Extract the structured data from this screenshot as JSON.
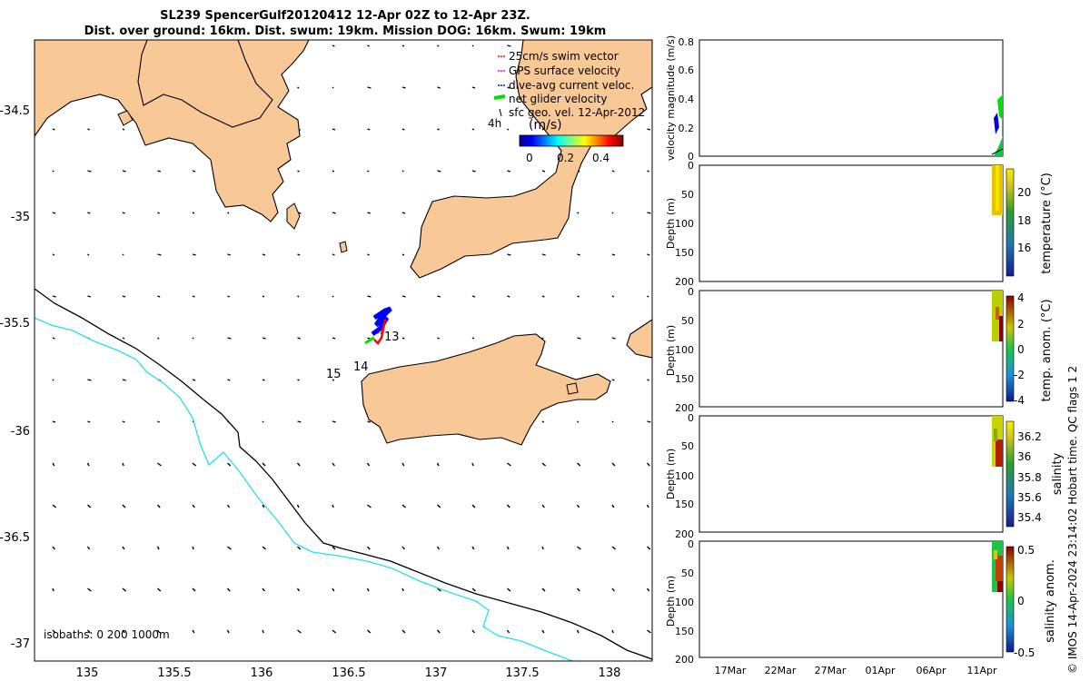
{
  "title_line1": "SL239 SpencerGulf20120412 12-Apr 02Z to 12-Apr 23Z.",
  "title_line2": "Dist. over ground: 16km. Dist. swum: 19km. Mission DOG: 16km. Swum: 19km",
  "credit": "© IMOS 14-Apr-2024 23:14:02 Hobart time. QC flags 1  2",
  "colors": {
    "land": "#f9c897",
    "coast": "#000000",
    "isobath_cyan": "#22e0ee",
    "swim_vector": "#ff0000",
    "gps_velocity": "#ff00ff",
    "dive_avg": "#0000ff",
    "net_glider": "#00dd00"
  },
  "chart_data": [
    {
      "type": "map",
      "xticks": [
        "135",
        "135.5",
        "136",
        "136.5",
        "137",
        "137.5",
        "138"
      ],
      "yticks": [
        "-34.5",
        "-35",
        "-35.5",
        "-36",
        "-36.5",
        "-37"
      ],
      "xlim": [
        134.7,
        138.25
      ],
      "ylim": [
        -37.1,
        -34.3
      ],
      "legend": [
        {
          "label": "25cm/s swim vector",
          "color": "#ff0000"
        },
        {
          "label": "GPS surface velocity",
          "color": "#ff00ff"
        },
        {
          "label": "dive-avg current veloc.",
          "color": "#0000ff"
        },
        {
          "label": "net glider velocity",
          "color": "#00dd00"
        },
        {
          "label": "sfc geo. vel. 12-Apr-2012",
          "color": "#000000"
        }
      ],
      "legend_marker_text": "4h",
      "colorbar_title": "(m/s)",
      "colorbar_ticks": [
        "0",
        "0.2",
        "0.4"
      ],
      "colorbar_range": [
        0,
        0.5
      ],
      "isobath_label": "isobaths: 0   200  1000m",
      "track_labels": [
        {
          "text": "13",
          "lon": 136.76,
          "lat": -35.56
        },
        {
          "text": "14",
          "lon": 136.58,
          "lat": -35.7
        },
        {
          "text": "15",
          "lon": 136.39,
          "lat": -35.73
        }
      ],
      "track": [
        [
          136.61,
          -35.6
        ],
        [
          136.66,
          -35.55
        ],
        [
          136.66,
          -35.5
        ],
        [
          136.7,
          -35.47
        ],
        [
          136.74,
          -35.43
        ]
      ]
    },
    {
      "type": "line",
      "ylabel": "velocity magnitude (m/s)",
      "yticks": [
        "0",
        "0.2",
        "0.4",
        "0.6",
        "0.8"
      ],
      "ylim": [
        0,
        0.8
      ]
    },
    {
      "type": "heatmap",
      "ylabel": "Depth (m)",
      "yticks": [
        "0",
        "50",
        "100",
        "150",
        "200"
      ],
      "colorbar_label": "temperature (°C)",
      "colorbar_ticks": [
        "16",
        "18",
        "20"
      ]
    },
    {
      "type": "heatmap",
      "ylabel": "Depth (m)",
      "yticks": [
        "0",
        "50",
        "100",
        "150",
        "200"
      ],
      "colorbar_label": "temp. anom. (°C)",
      "colorbar_ticks": [
        "4",
        "2",
        "0",
        "-2",
        "-4"
      ]
    },
    {
      "type": "heatmap",
      "ylabel": "Depth (m)",
      "yticks": [
        "0",
        "50",
        "100",
        "150",
        "200"
      ],
      "colorbar_label": "salinity",
      "colorbar_ticks": [
        "36.2",
        "36",
        "35.8",
        "35.6",
        "35.4"
      ]
    },
    {
      "type": "heatmap",
      "ylabel": "Depth (m)",
      "yticks": [
        "0",
        "50",
        "100",
        "150",
        "200"
      ],
      "colorbar_label": "salinity anom.",
      "colorbar_ticks": [
        "0.5",
        "0",
        "-0.5"
      ],
      "xticks": [
        "17Mar",
        "22Mar",
        "27Mar",
        "01Apr",
        "06Apr",
        "11Apr"
      ]
    }
  ]
}
